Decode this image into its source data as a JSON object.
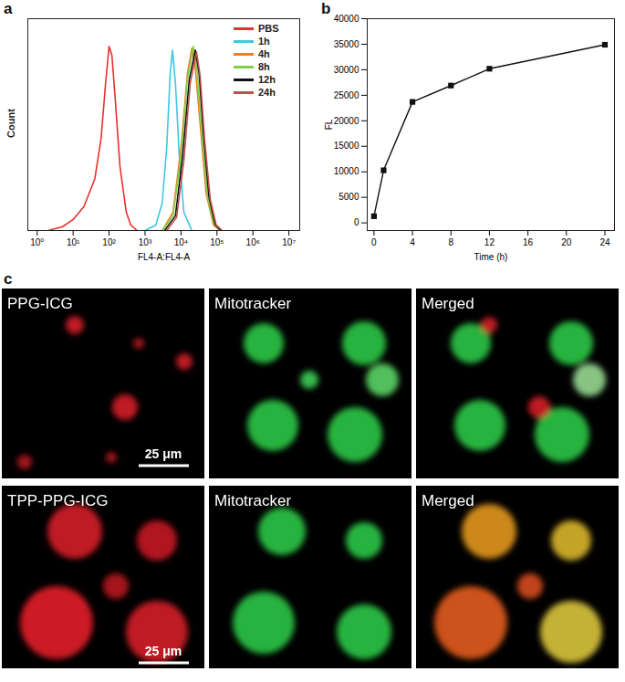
{
  "chart_data": [
    {
      "panel": "a",
      "type": "line",
      "x_label": "FL4-A:FL4-A",
      "y_label": "Count",
      "log": "x",
      "xlim": [
        0.55,
        20000000
      ],
      "xticks": [
        {
          "value": 1,
          "label": "10⁰"
        },
        {
          "value": 10,
          "label": "10¹"
        },
        {
          "value": 100,
          "label": "10²"
        },
        {
          "value": 1000,
          "label": "10³"
        },
        {
          "value": 10000,
          "label": "10⁴"
        },
        {
          "value": 100000,
          "label": "10⁵"
        },
        {
          "value": 1000000,
          "label": "10⁶"
        },
        {
          "value": 10000000,
          "label": "10⁷"
        }
      ],
      "ylim": [
        0,
        115
      ],
      "yticks": [],
      "tick_labels": "x",
      "legend": "top-right",
      "series": [
        {
          "name": "PBS",
          "color": "#e8312f",
          "x": [
            2,
            5,
            10,
            20,
            40,
            60,
            80,
            100,
            120,
            150,
            200,
            300,
            400,
            600
          ],
          "values": [
            0,
            2,
            6,
            13,
            28,
            50,
            80,
            100,
            95,
            70,
            35,
            10,
            3,
            0
          ]
        },
        {
          "name": "1h",
          "color": "#3cc8e0",
          "x": [
            1000,
            2000,
            3000,
            4000,
            5000,
            5800,
            7000,
            9000,
            12000,
            20000
          ],
          "values": [
            0,
            3,
            15,
            45,
            85,
            98,
            80,
            40,
            10,
            0
          ]
        },
        {
          "name": "4h",
          "color": "#f07f1f",
          "x": [
            3000,
            6000,
            10000,
            15000,
            20000,
            25000,
            35000,
            50000,
            80000,
            120000
          ],
          "values": [
            0,
            10,
            45,
            85,
            99,
            88,
            55,
            20,
            3,
            0
          ]
        },
        {
          "name": "8h",
          "color": "#7fd14a",
          "x": [
            3000,
            6000,
            10000,
            15000,
            22000,
            28000,
            38000,
            55000,
            85000,
            120000
          ],
          "values": [
            0,
            8,
            40,
            82,
            100,
            87,
            52,
            18,
            3,
            0
          ]
        },
        {
          "name": "12h",
          "color": "#111111",
          "x": [
            3500,
            7000,
            11000,
            17000,
            25000,
            32000,
            42000,
            60000,
            90000,
            130000
          ],
          "values": [
            0,
            8,
            40,
            82,
            98,
            85,
            52,
            18,
            3,
            0
          ]
        },
        {
          "name": "24h",
          "color": "#c0504d",
          "x": [
            4000,
            7500,
            12000,
            18000,
            27000,
            34000,
            45000,
            65000,
            95000,
            140000
          ],
          "values": [
            0,
            7,
            38,
            80,
            97,
            84,
            50,
            17,
            3,
            0
          ]
        }
      ]
    },
    {
      "panel": "b",
      "type": "line",
      "x_label": "Time (h)",
      "y_label": "FL",
      "xlim": [
        -0.7,
        25
      ],
      "xticks": [
        0,
        4,
        8,
        12,
        16,
        20,
        24
      ],
      "ylim": [
        -1500,
        40000
      ],
      "yticks": [
        0,
        5000,
        10000,
        15000,
        20000,
        25000,
        30000,
        35000,
        40000
      ],
      "marker": "square",
      "color": "#111111",
      "x": [
        0,
        1,
        4,
        8,
        12,
        24
      ],
      "values": [
        1300,
        10300,
        23700,
        26900,
        30200,
        34900
      ]
    }
  ],
  "panel_c": {
    "panel": "c",
    "scale_bar": "25 μm",
    "rows": [
      {
        "cells": [
          "PPG-ICG",
          "Mitotracker",
          "Merged"
        ]
      },
      {
        "cells": [
          "TPP-PPG-ICG",
          "Mitotracker",
          "Merged"
        ]
      }
    ]
  }
}
